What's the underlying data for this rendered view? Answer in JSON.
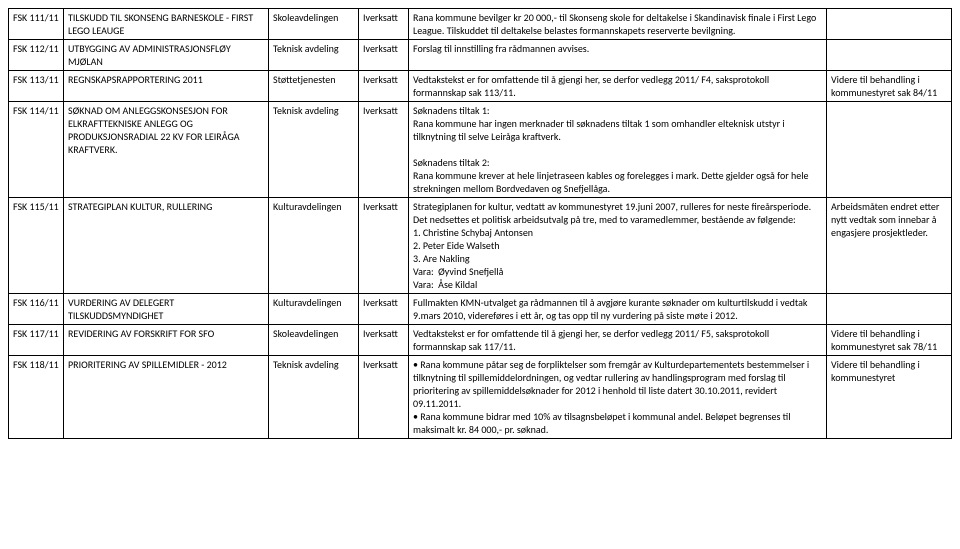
{
  "rows": [
    {
      "id": "FSK 111/11",
      "title": "TILSKUDD TIL SKONSENG BARNESKOLE - FIRST LEGO LEAUGE",
      "dept": "Skoleavdelingen",
      "status": "Iverksatt",
      "desc": "Rana kommune bevilger kr 20 000,- til Skonseng skole for deltakelse i Skandinavisk finale i First Lego League. Tilskuddet til deltakelse belastes formannskapets reserverte bevilgning.",
      "note": ""
    },
    {
      "id": "FSK 112/11",
      "title": "UTBYGGING AV ADMINISTRASJONSFLØY MJØLAN",
      "dept": "Teknisk avdeling",
      "status": "Iverksatt",
      "desc": "Forslag til innstilling fra rådmannen avvises.",
      "note": ""
    },
    {
      "id": "FSK 113/11",
      "title": "REGNSKAPSRAPPORTERING 2011",
      "dept": "Støttetjenesten",
      "status": "Iverksatt",
      "desc": "Vedtakstekst er for omfattende til å gjengi her, se derfor vedlegg 2011/ F4, saksprotokoll formannskap sak 113/11.",
      "note": "Videre til behandling i kommunestyret sak 84/11"
    },
    {
      "id": "FSK 114/11",
      "title": "SØKNAD OM ANLEGGSKONSESJON FOR ELKRAFTTEKNISKE ANLEGG OG PRODUKSJONSRADIAL 22 KV FOR LEIRÅGA KRAFTVERK.",
      "dept": "Teknisk avdeling",
      "status": "Iverksatt",
      "desc": "Søknadens tiltak 1:\nRana kommune har ingen merknader til søknadens tiltak 1 som omhandler elteknisk utstyr i tilknytning til selve Leiråga kraftverk.\n\nSøknadens tiltak 2:\nRana kommune krever at hele linjetraseen kables og forelegges i mark. Dette gjelder også for hele strekningen mellom Bordvedaven og Snefjellåga.",
      "note": ""
    },
    {
      "id": "FSK 115/11",
      "title": "STRATEGIPLAN KULTUR, RULLERING",
      "dept": "Kulturavdelingen",
      "status": "Iverksatt",
      "desc": "Strategiplanen for kultur, vedtatt av kommunestyret 19.juni 2007, rulleres for neste fireårsperiode.\nDet nedsettes et politisk arbeidsutvalg på tre, med to varamedlemmer, bestående av følgende:\n1. Christine Schybaj Antonsen\n2. Peter Eide Walseth\n3. Are Nakling\nVara:  Øyvind Snefjellå\nVara:  Åse Kildal",
      "note": "Arbeidsmåten endret etter nytt vedtak som innebar å engasjere prosjektleder."
    },
    {
      "id": "FSK 116/11",
      "title": "VURDERING AV DELEGERT TILSKUDDSMYNDIGHET",
      "dept": "Kulturavdelingen",
      "status": "Iverksatt",
      "desc": "Fullmakten KMN-utvalget ga rådmannen til å avgjøre kurante søknader om kulturtilskudd i vedtak 9.mars 2010, videreføres i ett år, og tas opp til ny vurdering på siste møte i 2012.",
      "note": ""
    },
    {
      "id": "FSK 117/11",
      "title": "REVIDERING AV FORSKRIFT FOR SFO",
      "dept": "Skoleavdelingen",
      "status": "Iverksatt",
      "desc": "Vedtakstekst er for omfattende til å gjengi her, se derfor vedlegg 2011/ F5, saksprotokoll formannskap sak 117/11.",
      "note": "Videre til behandling i kommunestyret sak 78/11"
    },
    {
      "id": "FSK 118/11",
      "title": "PRIORITERING AV SPILLEMIDLER - 2012",
      "dept": "Teknisk avdeling",
      "status": "Iverksatt",
      "desc": "• Rana kommune påtar seg de forpliktelser som fremgår av Kulturdepartementets bestemmelser i tilknytning til spillemiddelordningen, og vedtar rullering av handlingsprogram med forslag til prioritering av spillemiddelsøknader for 2012 i henhold til liste datert 30.10.2011, revidert 09.11.2011.\n• Rana kommune bidrar med 10% av tilsagnsbeløpet i kommunal andel. Beløpet begrenses til maksimalt kr. 84 000,- pr. søknad.",
      "note": "Videre til behandling i kommunestyret"
    }
  ]
}
